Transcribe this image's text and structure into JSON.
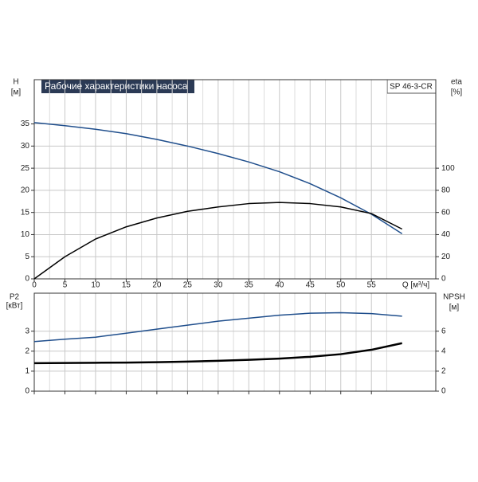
{
  "chart_data": [
    {
      "type": "line",
      "title": "Рабочие характеристики насоса",
      "subtitle": "SP 46-3-CR",
      "y_label": "H",
      "y_unit": "[м]",
      "y2_label": "eta",
      "y2_unit": "[%]",
      "x_label": "Q [м³/ч]",
      "x": [
        0,
        5,
        10,
        15,
        20,
        25,
        30,
        35,
        40,
        45,
        50,
        55,
        60
      ],
      "series": [
        {
          "color": "#1f4e8c",
          "values": [
            35.3,
            34.6,
            33.8,
            32.8,
            31.5,
            30.0,
            28.3,
            26.4,
            24.2,
            21.5,
            18.3,
            14.6,
            10.2
          ]
        },
        {
          "color": "#000000",
          "axis": "y2",
          "values": [
            0,
            20,
            36,
            47,
            55,
            61,
            65,
            68,
            69,
            68,
            65,
            59,
            45
          ]
        }
      ],
      "xlim": [
        0,
        65.5
      ],
      "xticks": [
        0,
        5,
        10,
        15,
        20,
        25,
        30,
        35,
        40,
        45,
        50,
        55
      ],
      "ylim": [
        0,
        45
      ],
      "yticks": [
        0,
        5,
        10,
        15,
        20,
        25,
        30,
        35
      ],
      "y2lim": [
        0,
        180
      ],
      "y2ticks": [
        0,
        20,
        40,
        60,
        80,
        100
      ],
      "grid": true
    },
    {
      "type": "line",
      "y_label": "P2",
      "y_unit": "[кВт]",
      "y2_label": "NPSH",
      "y2_unit": "[м]",
      "x": [
        0,
        5,
        10,
        15,
        20,
        25,
        30,
        35,
        40,
        45,
        50,
        55,
        60
      ],
      "series": [
        {
          "color": "#000000",
          "values": [
            1.4,
            1.41,
            1.42,
            1.43,
            1.45,
            1.48,
            1.52,
            1.57,
            1.63,
            1.72,
            1.85,
            2.07,
            2.4
          ]
        },
        {
          "color": "#1f4e8c",
          "axis": "y2",
          "values": [
            4.96,
            5.2,
            5.4,
            5.8,
            6.2,
            6.6,
            7.0,
            7.3,
            7.6,
            7.8,
            7.85,
            7.76,
            7.5
          ]
        }
      ],
      "xlim": [
        0,
        65.5
      ],
      "ylim": [
        0,
        4.9
      ],
      "yticks": [
        0,
        1,
        2,
        3
      ],
      "y2lim": [
        0,
        9.8
      ],
      "y2ticks": [
        0,
        2,
        4,
        6
      ],
      "grid": true
    }
  ]
}
